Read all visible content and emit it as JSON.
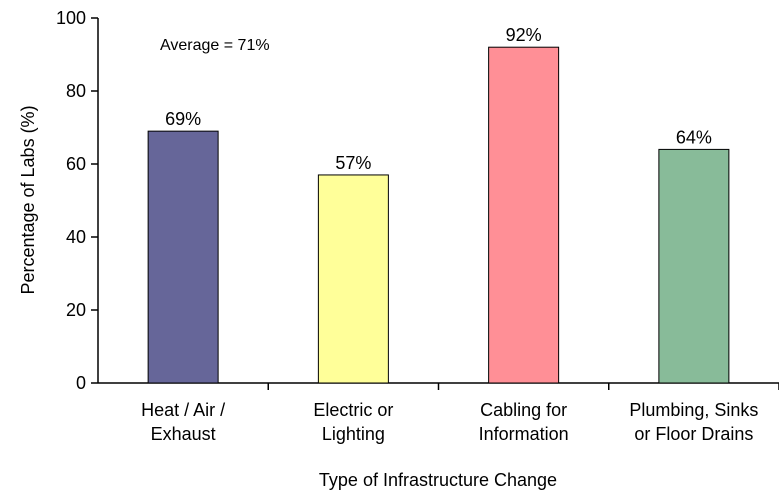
{
  "chart_data": {
    "type": "bar",
    "categories": [
      [
        "Heat / Air /",
        "Exhaust"
      ],
      [
        "Electric or",
        "Lighting"
      ],
      [
        "Cabling for",
        "Information"
      ],
      [
        "Plumbing, Sinks",
        "or Floor Drains"
      ]
    ],
    "values": [
      69,
      57,
      92,
      64
    ],
    "data_labels": [
      "69%",
      "57%",
      "92%",
      "64%"
    ],
    "colors": [
      "#666699",
      "#ffff99",
      "#ff8f96",
      "#88bb99"
    ],
    "title": "",
    "annotation": "Average = 71%",
    "xlabel": "Type of Infrastructure Change",
    "ylabel": "Percentage of Labs (%)",
    "ylim": [
      0,
      100
    ],
    "yticks": [
      0,
      20,
      40,
      60,
      80,
      100
    ],
    "grid": false,
    "legend": "none"
  }
}
